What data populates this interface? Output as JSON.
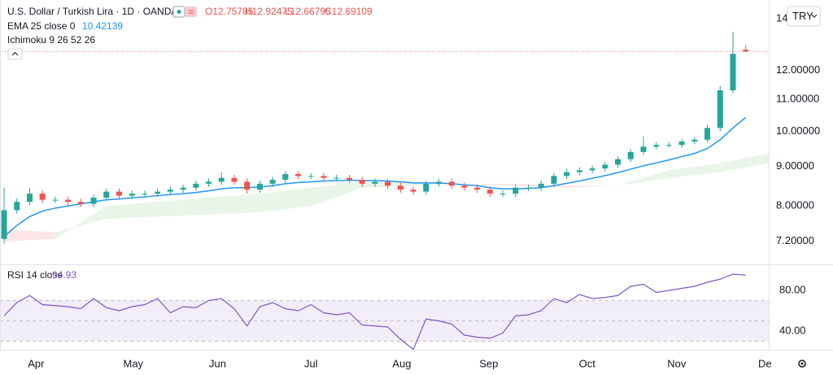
{
  "chart_data": [
    {
      "type": "candlestick",
      "title": "U.S. Dollar / Turkish Lira · 1D · OANDA",
      "ohlc_labels": [
        "O12.75785",
        "H12.92475",
        "L12.66795",
        "C12.69109"
      ],
      "currency": "TRY",
      "up_color": "#26a69a",
      "down_color": "#ef5350",
      "log_scale": true,
      "grid": false,
      "x": [
        0,
        1,
        2,
        3,
        4,
        5,
        6,
        7,
        8,
        9,
        10,
        11,
        12,
        13,
        14,
        15,
        16,
        17,
        18,
        19,
        20,
        21,
        22,
        23,
        24,
        25,
        26,
        27,
        28,
        29,
        30,
        31,
        32,
        33,
        34,
        35,
        36,
        37,
        38,
        39,
        40,
        41,
        42,
        43,
        44,
        45,
        46,
        47,
        48,
        49,
        50,
        51,
        52,
        53,
        54,
        55,
        56,
        57,
        58
      ],
      "open": [
        7.25,
        7.9,
        8.1,
        8.3,
        8.15,
        8.15,
        8.1,
        8.05,
        8.2,
        8.35,
        8.25,
        8.3,
        8.3,
        8.35,
        8.4,
        8.45,
        8.55,
        8.6,
        8.7,
        8.6,
        8.4,
        8.55,
        8.65,
        8.8,
        8.75,
        8.75,
        8.7,
        8.7,
        8.65,
        8.55,
        8.6,
        8.5,
        8.4,
        8.35,
        8.55,
        8.6,
        8.5,
        8.45,
        8.4,
        8.3,
        8.3,
        8.45,
        8.45,
        8.55,
        8.75,
        8.85,
        8.9,
        8.95,
        9.05,
        9.2,
        9.4,
        9.55,
        9.6,
        9.6,
        9.7,
        9.75,
        10.1,
        11.3,
        12.75785
      ],
      "high": [
        8.45,
        8.18,
        8.45,
        8.38,
        8.23,
        8.23,
        8.18,
        8.28,
        8.43,
        8.43,
        8.38,
        8.38,
        8.43,
        8.48,
        8.53,
        8.63,
        8.68,
        8.85,
        8.78,
        8.68,
        8.63,
        8.73,
        8.88,
        8.88,
        8.83,
        8.83,
        8.78,
        8.78,
        8.73,
        8.68,
        8.68,
        8.58,
        8.48,
        8.63,
        8.68,
        8.68,
        8.58,
        8.53,
        8.48,
        8.38,
        8.53,
        8.53,
        8.63,
        8.83,
        8.93,
        8.98,
        9.03,
        9.13,
        9.28,
        9.48,
        9.85,
        9.68,
        9.68,
        9.78,
        9.83,
        10.2,
        11.45,
        13.45,
        12.92475
      ],
      "low": [
        7.15,
        7.82,
        8.02,
        8.07,
        8.07,
        8.02,
        7.97,
        7.97,
        8.12,
        8.17,
        8.17,
        8.22,
        8.22,
        8.27,
        8.32,
        8.37,
        8.47,
        8.52,
        8.52,
        8.3,
        8.32,
        8.47,
        8.57,
        8.67,
        8.67,
        8.62,
        8.62,
        8.57,
        8.47,
        8.47,
        8.42,
        8.32,
        8.27,
        8.27,
        8.47,
        8.42,
        8.37,
        8.32,
        8.22,
        8.22,
        8.22,
        8.37,
        8.37,
        8.47,
        8.67,
        8.77,
        8.82,
        8.87,
        8.97,
        9.12,
        9.32,
        9.47,
        9.52,
        9.52,
        9.62,
        9.67,
        10.0,
        11.2,
        12.66795
      ],
      "close": [
        7.9,
        8.1,
        8.3,
        8.15,
        8.15,
        8.1,
        8.05,
        8.2,
        8.35,
        8.25,
        8.3,
        8.3,
        8.35,
        8.4,
        8.45,
        8.55,
        8.6,
        8.7,
        8.6,
        8.4,
        8.55,
        8.65,
        8.8,
        8.75,
        8.75,
        8.7,
        8.7,
        8.65,
        8.55,
        8.6,
        8.5,
        8.4,
        8.35,
        8.55,
        8.6,
        8.5,
        8.45,
        8.4,
        8.3,
        8.3,
        8.45,
        8.45,
        8.55,
        8.75,
        8.85,
        8.9,
        8.95,
        9.05,
        9.2,
        9.4,
        9.55,
        9.6,
        9.6,
        9.7,
        9.75,
        10.1,
        11.3,
        12.6,
        12.69109
      ],
      "series": [
        {
          "name": "EMA 25 close 0",
          "color": "#2196f3",
          "values": [
            7.3,
            7.55,
            7.75,
            7.88,
            7.95,
            8.0,
            8.05,
            8.1,
            8.15,
            8.17,
            8.2,
            8.22,
            8.25,
            8.28,
            8.3,
            8.33,
            8.37,
            8.42,
            8.45,
            8.45,
            8.47,
            8.5,
            8.55,
            8.58,
            8.6,
            8.62,
            8.63,
            8.64,
            8.63,
            8.63,
            8.62,
            8.6,
            8.57,
            8.57,
            8.57,
            8.55,
            8.52,
            8.5,
            8.45,
            8.42,
            8.42,
            8.43,
            8.45,
            8.5,
            8.56,
            8.62,
            8.69,
            8.76,
            8.84,
            8.93,
            9.02,
            9.1,
            9.18,
            9.27,
            9.36,
            9.5,
            9.75,
            10.1,
            10.42139
          ]
        }
      ],
      "ichimoku": {
        "name": "Ichimoku 9 26 52 26",
        "up_color": "rgba(76,175,80,0.13)",
        "down_color": "rgba(242,54,69,0.13)",
        "x": [
          0,
          4,
          8,
          12,
          16,
          20,
          24,
          28,
          32,
          36,
          40,
          44,
          48,
          52,
          56,
          60
        ],
        "span_a": [
          7.2,
          7.25,
          8.0,
          8.1,
          8.2,
          8.3,
          8.45,
          8.6,
          8.6,
          8.55,
          8.5,
          8.45,
          8.5,
          8.9,
          9.1,
          9.35
        ],
        "span_b": [
          7.45,
          7.4,
          7.7,
          7.75,
          7.8,
          7.85,
          8.0,
          8.45,
          8.5,
          8.55,
          8.55,
          8.5,
          8.5,
          8.7,
          8.85,
          9.1
        ]
      },
      "xlim": [
        -0.32,
        59.8
      ],
      "ylim": [
        6.72,
        14.8
      ],
      "yticks": [
        {
          "value": 7.2,
          "label": "7.20000"
        },
        {
          "value": 8,
          "label": "8.00000"
        },
        {
          "value": 9,
          "label": "9.00000"
        },
        {
          "value": 10,
          "label": "10.00000"
        },
        {
          "value": 11,
          "label": "11.00000"
        },
        {
          "value": 12,
          "label": "12.00000"
        },
        {
          "value": 14,
          "label": "14.00000"
        }
      ],
      "xticks": [
        {
          "value": 2.5,
          "label": "Apr"
        },
        {
          "value": 10.1,
          "label": "May"
        },
        {
          "value": 16.7,
          "label": "Jun"
        },
        {
          "value": 24.0,
          "label": "Jul"
        },
        {
          "value": 31.1,
          "label": "Aug"
        },
        {
          "value": 37.9,
          "label": "Sep"
        },
        {
          "value": 45.6,
          "label": "Oct"
        },
        {
          "value": 52.6,
          "label": "Nov"
        },
        {
          "value": 59.5,
          "label": "De"
        }
      ]
    },
    {
      "type": "line",
      "series": [
        {
          "name": "RSI 14 close",
          "color": "#7e57c2",
          "values": [
            55,
            68,
            75,
            66,
            65,
            64,
            62,
            72,
            63,
            60,
            64,
            66,
            72,
            58,
            64,
            63,
            70,
            72,
            62,
            45,
            64,
            68,
            62,
            60,
            66,
            58,
            56,
            58,
            46,
            45,
            44,
            32,
            22,
            52,
            50,
            47,
            36,
            34,
            33,
            38,
            55,
            56,
            60,
            72,
            68,
            76,
            72,
            73,
            75,
            84,
            86,
            78,
            80,
            82,
            84,
            88,
            91,
            96,
            94.93
          ]
        }
      ],
      "bands": [
        70,
        50,
        30
      ],
      "band_color": "rgba(126,87,194,0.1)",
      "ylim": [
        21.6,
        104.8
      ],
      "yticks": [
        {
          "value": 40,
          "label": "40.00"
        },
        {
          "value": 80,
          "label": "80.00"
        }
      ]
    }
  ]
}
